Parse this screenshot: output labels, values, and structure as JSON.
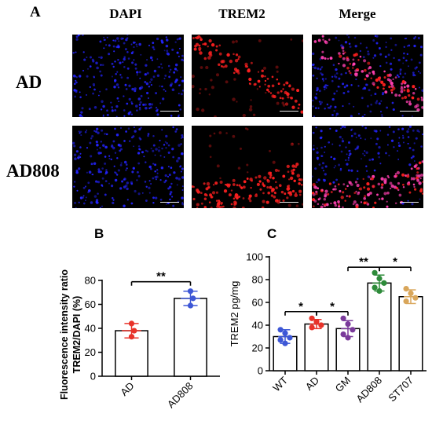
{
  "panel_a": {
    "letter": "A",
    "columns": [
      "DAPI",
      "TREM2",
      "Merge"
    ],
    "rows": [
      "AD",
      "AD808"
    ],
    "colors": {
      "dapi": "#2424ff",
      "trem2": "#ff2020",
      "merge": "#ff40b0"
    }
  },
  "chart_data": [
    {
      "panel_letter": "B",
      "type": "bar",
      "categories": [
        "AD",
        "AD808"
      ],
      "values": [
        38,
        65
      ],
      "error": [
        6,
        6
      ],
      "points": [
        [
          44,
          38,
          33
        ],
        [
          71,
          65,
          59
        ]
      ],
      "point_colors": [
        "#e8332a",
        "#3d57d6"
      ],
      "ylabel_line1": "Fluorescence intensity ratio",
      "ylabel_line2": "TREM2/DAPI (%)",
      "ylim": [
        0,
        80
      ],
      "yticks": [
        0,
        20,
        40,
        60,
        80
      ],
      "significance": [
        {
          "pair": [
            0,
            1
          ],
          "label": "**"
        }
      ]
    },
    {
      "panel_letter": "C",
      "type": "bar",
      "categories": [
        "WT",
        "AD",
        "GM",
        "AD808",
        "ST707"
      ],
      "values": [
        30,
        41,
        37,
        77,
        65
      ],
      "error": [
        6,
        4,
        7,
        7,
        6
      ],
      "points": [
        [
          36,
          33,
          29,
          27,
          24
        ],
        [
          46,
          43,
          40,
          38
        ],
        [
          46,
          41,
          36,
          32,
          29
        ],
        [
          86,
          81,
          77,
          73,
          70
        ],
        [
          72,
          68,
          64,
          61
        ]
      ],
      "point_colors": [
        "#3d57d6",
        "#e8332a",
        "#7a3a9a",
        "#2e8b3a",
        "#d9a65a"
      ],
      "ylabel": "TREM2 pg/mg",
      "ylim": [
        0,
        100
      ],
      "yticks": [
        0,
        20,
        40,
        60,
        80,
        100
      ],
      "significance": [
        {
          "pair": [
            0,
            1
          ],
          "label": "*"
        },
        {
          "pair": [
            1,
            2
          ],
          "label": "*"
        },
        {
          "pair": [
            2,
            3
          ],
          "label": "**"
        },
        {
          "pair": [
            3,
            4
          ],
          "label": "*"
        }
      ]
    }
  ]
}
